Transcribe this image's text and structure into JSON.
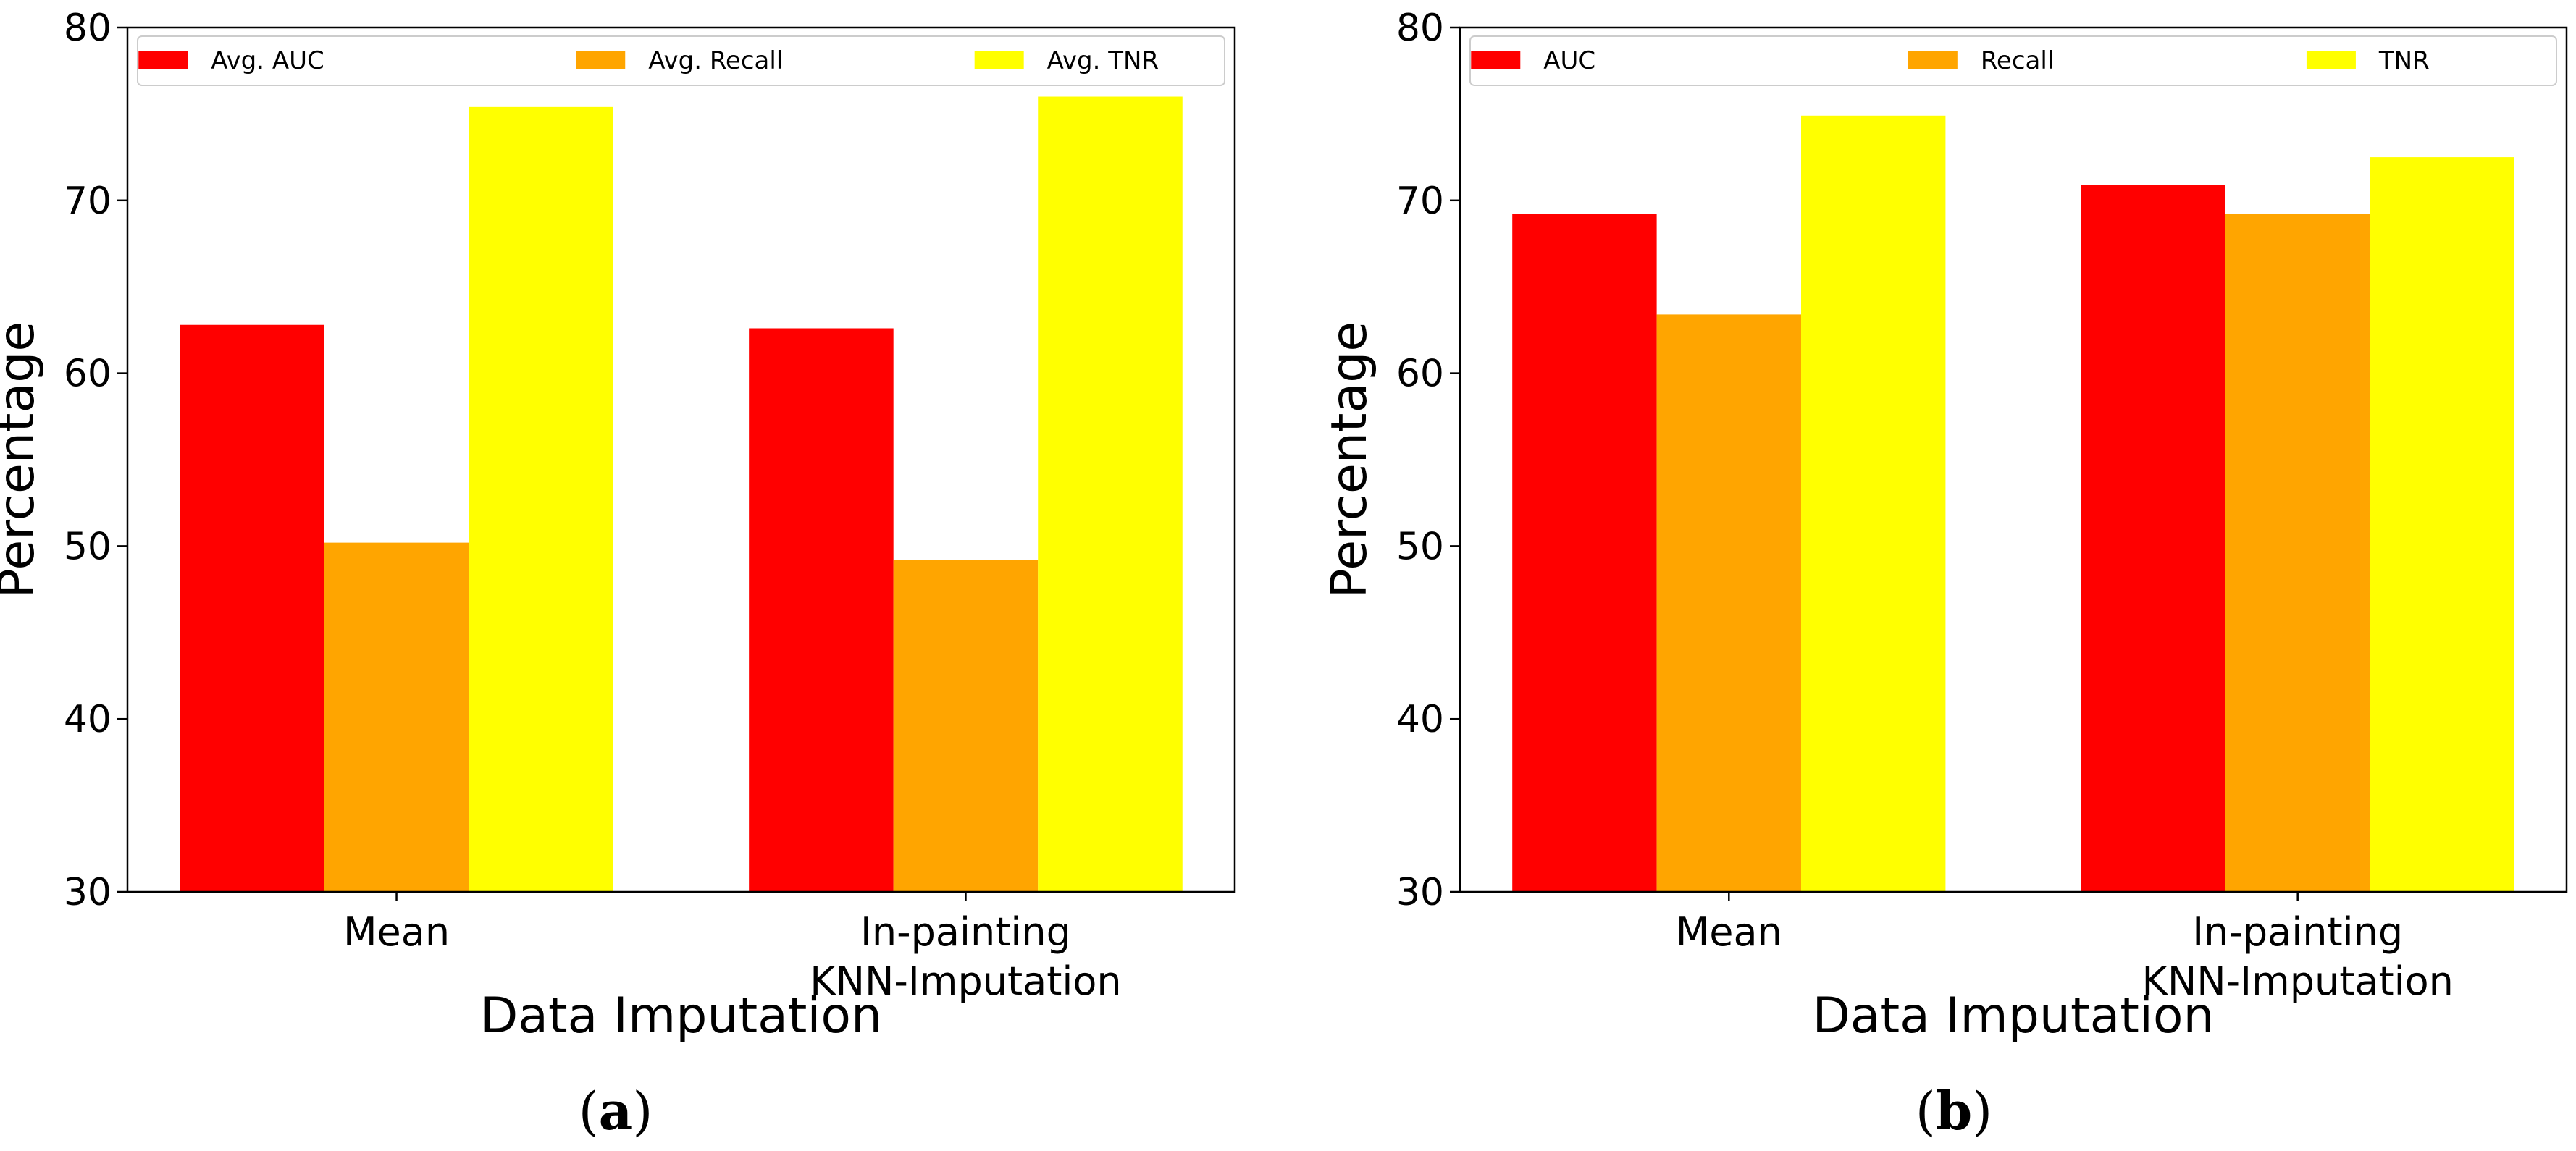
{
  "chart_data": [
    {
      "panel_label": "a",
      "type": "bar",
      "categories": [
        "Mean",
        "In-painting\nKNN-Imputation"
      ],
      "series": [
        {
          "name": "Avg. AUC",
          "color": "#ff0000",
          "values": [
            62.8,
            62.6
          ]
        },
        {
          "name": "Avg. Recall",
          "color": "#ffa500",
          "values": [
            50.2,
            49.2
          ]
        },
        {
          "name": "Avg. TNR",
          "color": "#ffff00",
          "values": [
            75.4,
            76.0
          ]
        }
      ],
      "xlabel": "Data Imputation",
      "ylabel": "Percentage",
      "ylim": [
        30,
        80
      ],
      "yticks": [
        30,
        40,
        50,
        60,
        70,
        80
      ],
      "legend": "top",
      "grid": false
    },
    {
      "panel_label": "b",
      "type": "bar",
      "categories": [
        "Mean",
        "In-painting\nKNN-Imputation"
      ],
      "series": [
        {
          "name": "AUC",
          "color": "#ff0000",
          "values": [
            69.2,
            70.9
          ]
        },
        {
          "name": "Recall",
          "color": "#ffa500",
          "values": [
            63.4,
            69.2
          ]
        },
        {
          "name": "TNR",
          "color": "#ffff00",
          "values": [
            74.9,
            72.5
          ]
        }
      ],
      "xlabel": "Data Imputation",
      "ylabel": "Percentage",
      "ylim": [
        30,
        80
      ],
      "yticks": [
        30,
        40,
        50,
        60,
        70,
        80
      ],
      "legend": "top",
      "grid": false
    }
  ]
}
